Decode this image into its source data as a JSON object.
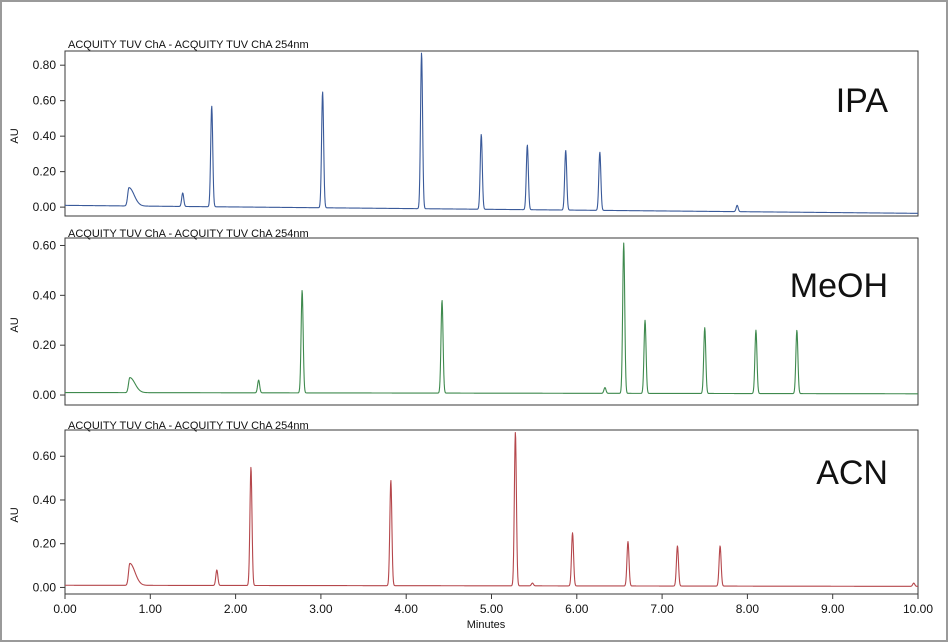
{
  "chart_data": [
    {
      "type": "line",
      "header": "ACQUITY TUV ChA - ACQUITY TUV ChA 254nm",
      "annotation": "IPA",
      "ylabel": "AU",
      "xlim": [
        0,
        10
      ],
      "ylim": [
        -0.05,
        0.88
      ],
      "yticks": [
        0.0,
        0.2,
        0.4,
        0.6,
        0.8
      ],
      "ytick_labels": [
        "0.00",
        "0.20",
        "0.40",
        "0.60",
        "0.80"
      ],
      "color": "#3a5a9a",
      "baseline": [
        [
          0,
          0.01
        ],
        [
          10,
          -0.035
        ]
      ],
      "peaks": [
        {
          "x": 0.75,
          "y": 0.11,
          "type": "void"
        },
        {
          "x": 1.38,
          "y": 0.08
        },
        {
          "x": 1.72,
          "y": 0.57
        },
        {
          "x": 3.02,
          "y": 0.65
        },
        {
          "x": 4.18,
          "y": 0.87
        },
        {
          "x": 4.88,
          "y": 0.41
        },
        {
          "x": 5.42,
          "y": 0.35
        },
        {
          "x": 5.87,
          "y": 0.32
        },
        {
          "x": 6.27,
          "y": 0.31
        },
        {
          "x": 7.88,
          "y": 0.01
        }
      ]
    },
    {
      "type": "line",
      "header": "ACQUITY TUV ChA - ACQUITY TUV ChA 254nm",
      "annotation": "MeOH",
      "ylabel": "AU",
      "xlim": [
        0,
        10
      ],
      "ylim": [
        -0.04,
        0.63
      ],
      "yticks": [
        0.0,
        0.2,
        0.4,
        0.6
      ],
      "ytick_labels": [
        "0.00",
        "0.20",
        "0.40",
        "0.60"
      ],
      "color": "#3f8a4e",
      "baseline": [
        [
          0,
          0.01
        ],
        [
          10,
          0.005
        ]
      ],
      "peaks": [
        {
          "x": 0.76,
          "y": 0.07,
          "type": "void"
        },
        {
          "x": 2.27,
          "y": 0.06
        },
        {
          "x": 2.78,
          "y": 0.42
        },
        {
          "x": 4.42,
          "y": 0.38
        },
        {
          "x": 6.33,
          "y": 0.03
        },
        {
          "x": 6.55,
          "y": 0.61
        },
        {
          "x": 6.8,
          "y": 0.3
        },
        {
          "x": 7.5,
          "y": 0.27
        },
        {
          "x": 8.1,
          "y": 0.26
        },
        {
          "x": 8.58,
          "y": 0.26
        }
      ]
    },
    {
      "type": "line",
      "header": "ACQUITY TUV ChA - ACQUITY TUV ChA 254nm",
      "annotation": "ACN",
      "ylabel": "AU",
      "xlabel": "Minutes",
      "xlim": [
        0,
        10
      ],
      "ylim": [
        -0.03,
        0.72
      ],
      "xticks": [
        0,
        1,
        2,
        3,
        4,
        5,
        6,
        7,
        8,
        9,
        10
      ],
      "xtick_labels": [
        "0.00",
        "1.00",
        "2.00",
        "3.00",
        "4.00",
        "5.00",
        "6.00",
        "7.00",
        "8.00",
        "9.00",
        "10.00"
      ],
      "yticks": [
        0.0,
        0.2,
        0.4,
        0.6
      ],
      "ytick_labels": [
        "0.00",
        "0.20",
        "0.40",
        "0.60"
      ],
      "color": "#b5474c",
      "baseline": [
        [
          0,
          0.01
        ],
        [
          10,
          0.005
        ]
      ],
      "peaks": [
        {
          "x": 0.76,
          "y": 0.11,
          "type": "void"
        },
        {
          "x": 1.78,
          "y": 0.08
        },
        {
          "x": 2.18,
          "y": 0.55
        },
        {
          "x": 3.82,
          "y": 0.49
        },
        {
          "x": 5.28,
          "y": 0.71
        },
        {
          "x": 5.48,
          "y": 0.02
        },
        {
          "x": 5.95,
          "y": 0.25
        },
        {
          "x": 6.6,
          "y": 0.21
        },
        {
          "x": 7.18,
          "y": 0.19
        },
        {
          "x": 7.68,
          "y": 0.19
        },
        {
          "x": 9.95,
          "y": 0.02
        }
      ]
    }
  ]
}
